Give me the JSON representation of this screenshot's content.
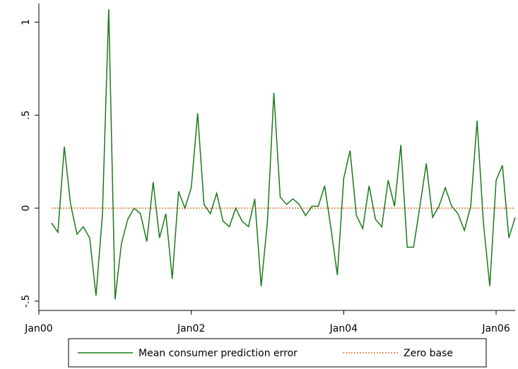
{
  "chart_data": {
    "type": "line",
    "x": [
      "2000-03",
      "2000-04",
      "2000-05",
      "2000-06",
      "2000-07",
      "2000-08",
      "2000-09",
      "2000-10",
      "2000-11",
      "2000-12",
      "2001-01",
      "2001-02",
      "2001-03",
      "2001-04",
      "2001-05",
      "2001-06",
      "2001-07",
      "2001-08",
      "2001-09",
      "2001-10",
      "2001-11",
      "2001-12",
      "2002-01",
      "2002-02",
      "2002-03",
      "2002-04",
      "2002-05",
      "2002-06",
      "2002-07",
      "2002-08",
      "2002-09",
      "2002-10",
      "2002-11",
      "2002-12",
      "2003-01",
      "2003-02",
      "2003-03",
      "2003-04",
      "2003-05",
      "2003-06",
      "2003-07",
      "2003-08",
      "2003-09",
      "2003-10",
      "2003-11",
      "2003-12",
      "2004-01",
      "2004-02",
      "2004-03",
      "2004-04",
      "2004-05",
      "2004-06",
      "2004-07",
      "2004-08",
      "2004-09",
      "2004-10",
      "2004-11",
      "2004-12",
      "2005-01",
      "2005-02",
      "2005-03",
      "2005-04",
      "2005-05",
      "2005-06",
      "2005-07",
      "2005-08",
      "2005-09",
      "2005-10",
      "2005-11",
      "2005-12",
      "2006-01",
      "2006-02",
      "2006-03",
      "2006-04"
    ],
    "series": [
      {
        "name": "Mean consumer prediction error",
        "color": "#1a7a1a",
        "dashed": false,
        "values": [
          -0.08,
          -0.13,
          0.33,
          0.02,
          -0.14,
          -0.1,
          -0.16,
          -0.47,
          -0.04,
          1.07,
          -0.49,
          -0.19,
          -0.06,
          0,
          -0.03,
          -0.18,
          0.14,
          -0.16,
          -0.03,
          -0.38,
          0.09,
          0,
          0.11,
          0.51,
          0.02,
          -0.03,
          0.08,
          -0.07,
          -0.1,
          0,
          -0.07,
          -0.1,
          0.05,
          -0.42,
          -0.07,
          0.62,
          0.06,
          0.02,
          0.05,
          0.02,
          -0.04,
          0.01,
          0.01,
          0.12,
          -0.11,
          -0.36,
          0.16,
          0.31,
          -0.04,
          -0.11,
          0.12,
          -0.06,
          -0.1,
          0.15,
          0.01,
          0.34,
          -0.21,
          -0.21,
          0.01,
          0.24,
          -0.05,
          0.01,
          0.11,
          0.01,
          -0.03,
          -0.12,
          0.01,
          0.47,
          -0.08,
          -0.42,
          0.15,
          0.23,
          -0.16,
          -0.05
        ]
      },
      {
        "name": "Zero base",
        "color": "#e8742c",
        "dashed": true,
        "values": [
          0,
          0,
          0,
          0,
          0,
          0,
          0,
          0,
          0,
          0,
          0,
          0,
          0,
          0,
          0,
          0,
          0,
          0,
          0,
          0,
          0,
          0,
          0,
          0,
          0,
          0,
          0,
          0,
          0,
          0,
          0,
          0,
          0,
          0,
          0,
          0,
          0,
          0,
          0,
          0,
          0,
          0,
          0,
          0,
          0,
          0,
          0,
          0,
          0,
          0,
          0,
          0,
          0,
          0,
          0,
          0,
          0,
          0,
          0,
          0,
          0,
          0,
          0,
          0,
          0,
          0,
          0,
          0,
          0,
          0,
          0,
          0,
          0,
          0
        ]
      }
    ],
    "xlim": [
      "2000-01",
      "2006-04"
    ],
    "xticks": [
      {
        "value": "2000-01",
        "label": "Jan00"
      },
      {
        "value": "2002-01",
        "label": "Jan02"
      },
      {
        "value": "2004-01",
        "label": "Jan04"
      },
      {
        "value": "2006-01",
        "label": "Jan06"
      }
    ],
    "ylim": [
      -0.55,
      1.1
    ],
    "yticks": [
      {
        "value": -0.5,
        "label": "-.5"
      },
      0,
      {
        "value": 0.5,
        "label": ".5"
      },
      1
    ],
    "grid": false,
    "legend": "bottom"
  }
}
